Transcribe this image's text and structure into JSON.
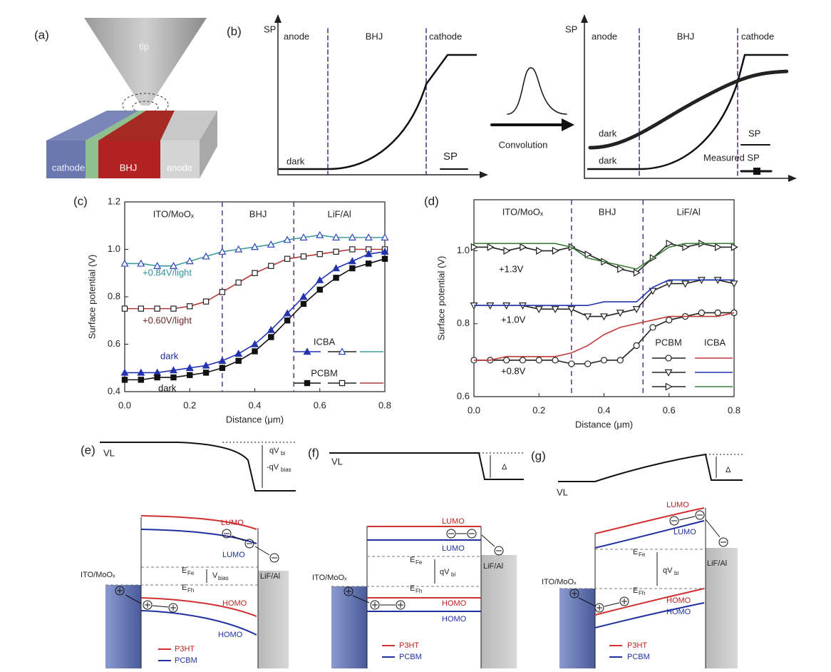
{
  "panel_a": {
    "label": "(a)",
    "tip": "tip",
    "cathode": "cathode",
    "bhj": "BHJ",
    "anode": "anode"
  },
  "panel_b": {
    "label": "(b)",
    "left": {
      "axis": "SP",
      "regions": [
        "anode",
        "BHJ",
        "cathode"
      ],
      "curve": "dark",
      "legend": "SP"
    },
    "convolution": "Convolution",
    "right": {
      "axis": "SP",
      "regions": [
        "anode",
        "BHJ",
        "cathode"
      ],
      "curve_measured": "dark",
      "curve": "dark",
      "legend": [
        "SP",
        "Measured SP"
      ]
    }
  },
  "chart_data": [
    {
      "type": "line",
      "panel": "(c)",
      "xlabel": "Distance (μm)",
      "ylabel": "Surface potential (V)",
      "xlim": [
        0,
        0.8
      ],
      "ylim": [
        0.4,
        1.2
      ],
      "xticks": [
        {
          "value": 0,
          "label": "0.0"
        },
        0.2,
        0.4,
        0.6,
        0.8
      ],
      "yticks": [
        0.4,
        0.6,
        0.8,
        {
          "value": 1,
          "label": "1.0"
        },
        {
          "value": 1.2,
          "label": "1.2"
        }
      ],
      "boundaries": [
        0.3,
        0.52
      ],
      "regions": [
        "ITO/MoOₓ",
        "BHJ",
        "LiF/Al"
      ],
      "annotations": [
        "+0.84V/light",
        "+0.60V/light",
        "dark",
        "dark"
      ],
      "legend": [
        "ICBA",
        "PCBM"
      ],
      "x": [
        0,
        0.05,
        0.1,
        0.15,
        0.2,
        0.25,
        0.3,
        0.35,
        0.4,
        0.45,
        0.5,
        0.55,
        0.6,
        0.65,
        0.7,
        0.75,
        0.8
      ],
      "series": [
        {
          "color": "#2b46b8",
          "line_color": "#3f9aa0",
          "marker": "triangle",
          "filled": false,
          "values": [
            0.94,
            0.94,
            0.93,
            0.93,
            0.95,
            0.97,
            0.99,
            1.0,
            1.01,
            1.02,
            1.04,
            1.05,
            1.06,
            1.05,
            1.05,
            1.05,
            1.05
          ]
        },
        {
          "color": "#222222",
          "line_color": "#b03a3a",
          "marker": "square",
          "filled": false,
          "values": [
            0.75,
            0.75,
            0.75,
            0.75,
            0.76,
            0.78,
            0.82,
            0.86,
            0.9,
            0.93,
            0.96,
            0.97,
            0.98,
            0.99,
            1.0,
            1.0,
            1.0
          ]
        },
        {
          "color": "#2233b0",
          "line_color": "#2233b0",
          "marker": "triangle",
          "filled": true,
          "values": [
            0.48,
            0.48,
            0.48,
            0.49,
            0.5,
            0.51,
            0.53,
            0.56,
            0.6,
            0.66,
            0.73,
            0.8,
            0.87,
            0.92,
            0.95,
            0.98,
            0.99
          ]
        },
        {
          "color": "#111111",
          "line_color": "#111111",
          "marker": "square",
          "filled": true,
          "values": [
            0.45,
            0.45,
            0.46,
            0.46,
            0.47,
            0.48,
            0.5,
            0.53,
            0.57,
            0.63,
            0.7,
            0.77,
            0.83,
            0.88,
            0.92,
            0.94,
            0.96
          ]
        }
      ]
    },
    {
      "type": "line",
      "panel": "(d)",
      "xlabel": "Distance (μm)",
      "ylabel": "Surface potential (V)",
      "xlim": [
        0,
        0.8
      ],
      "ylim": [
        0.6,
        1.14
      ],
      "xticks": [
        {
          "value": 0,
          "label": "0.0"
        },
        0.2,
        0.4,
        0.6,
        0.8
      ],
      "yticks": [
        0.6,
        0.8,
        {
          "value": 1,
          "label": "1.0"
        }
      ],
      "boundaries": [
        0.3,
        0.52
      ],
      "regions": [
        "ITO/MoOₓ",
        "BHJ",
        "LiF/Al"
      ],
      "annotations": [
        "+1.3V",
        "+1.0V",
        "+0.8V"
      ],
      "legend": [
        "PCBM",
        "ICBA"
      ],
      "x": [
        0,
        0.05,
        0.1,
        0.15,
        0.2,
        0.25,
        0.3,
        0.35,
        0.4,
        0.45,
        0.5,
        0.55,
        0.6,
        0.65,
        0.7,
        0.75,
        0.8
      ],
      "series": [
        {
          "color": "#222222",
          "line_color": "#222222",
          "marker": "triangle-right",
          "filled": false,
          "values": [
            1.01,
            1.01,
            1.0,
            1.01,
            1.0,
            1.0,
            1.01,
            0.99,
            0.97,
            0.95,
            0.94,
            0.98,
            1.02,
            1.01,
            1.02,
            1.01,
            1.01
          ]
        },
        {
          "color": "#3a7a3a",
          "line_color": "#3a7a3a",
          "marker": "none",
          "filled": false,
          "values": [
            1.02,
            1.02,
            1.02,
            1.02,
            1.02,
            1.02,
            1.01,
            0.98,
            0.97,
            0.96,
            0.95,
            0.98,
            1.01,
            1.02,
            1.02,
            1.02,
            1.02
          ]
        },
        {
          "color": "#222222",
          "line_color": "#222222",
          "marker": "triangle-down",
          "filled": false,
          "values": [
            0.85,
            0.85,
            0.85,
            0.85,
            0.84,
            0.84,
            0.84,
            0.82,
            0.82,
            0.83,
            0.84,
            0.89,
            0.91,
            0.91,
            0.92,
            0.92,
            0.91
          ]
        },
        {
          "color": "#2233b0",
          "line_color": "#2233b0",
          "marker": "none",
          "filled": false,
          "values": [
            0.85,
            0.85,
            0.85,
            0.85,
            0.85,
            0.85,
            0.85,
            0.85,
            0.86,
            0.86,
            0.86,
            0.9,
            0.92,
            0.92,
            0.92,
            0.92,
            0.92
          ]
        },
        {
          "color": "#222222",
          "line_color": "#222222",
          "marker": "circle",
          "filled": false,
          "values": [
            0.7,
            0.7,
            0.7,
            0.7,
            0.7,
            0.7,
            0.69,
            0.69,
            0.7,
            0.7,
            0.74,
            0.79,
            0.81,
            0.82,
            0.83,
            0.83,
            0.83
          ]
        },
        {
          "color": "#c03a3a",
          "line_color": "#c03a3a",
          "marker": "none",
          "filled": false,
          "values": [
            0.7,
            0.7,
            0.71,
            0.71,
            0.71,
            0.71,
            0.72,
            0.74,
            0.77,
            0.79,
            0.8,
            0.81,
            0.82,
            0.82,
            0.82,
            0.82,
            0.83
          ]
        }
      ]
    }
  ],
  "band_diagrams": [
    {
      "label": "(e)",
      "vl": "VL",
      "step": [
        "qV",
        "bi"
      ],
      "step2": [
        "-qV",
        "bias"
      ],
      "lumo": [
        "LUMO",
        "LUMO"
      ],
      "homo": [
        "HOMO",
        "HOMO"
      ],
      "efe": [
        "E",
        "Fe"
      ],
      "efh": [
        "E",
        "Fh"
      ],
      "split": [
        "V",
        "bias"
      ],
      "left": "ITO/MoOₓ",
      "right": "LiF/Al",
      "legend": [
        "P3HT",
        "PCBM"
      ]
    },
    {
      "label": "(f)",
      "vl": "VL",
      "step": "Δ",
      "lumo": [
        "LUMO",
        "LUMO"
      ],
      "homo": [
        "HOMO",
        "HOMO"
      ],
      "efe": [
        "E",
        "Fe"
      ],
      "efh": [
        "E",
        "Fh"
      ],
      "split": [
        "qV",
        "bi"
      ],
      "left": "ITO/MoOₓ",
      "right": "LiF/Al",
      "legend": [
        "P3HT",
        "PCBM"
      ]
    },
    {
      "label": "(g)",
      "vl": "VL",
      "step": "Δ",
      "lumo": [
        "LUMO",
        "LUMO"
      ],
      "homo": [
        "HOMO",
        "HOMO"
      ],
      "efe": [
        "E",
        "Fe"
      ],
      "efh": [
        "E",
        "Fh"
      ],
      "split": [
        "qV",
        "bi"
      ],
      "left": "ITO/MoOₓ",
      "right": "LiF/Al",
      "legend": [
        "P3HT",
        "PCBM"
      ]
    }
  ]
}
